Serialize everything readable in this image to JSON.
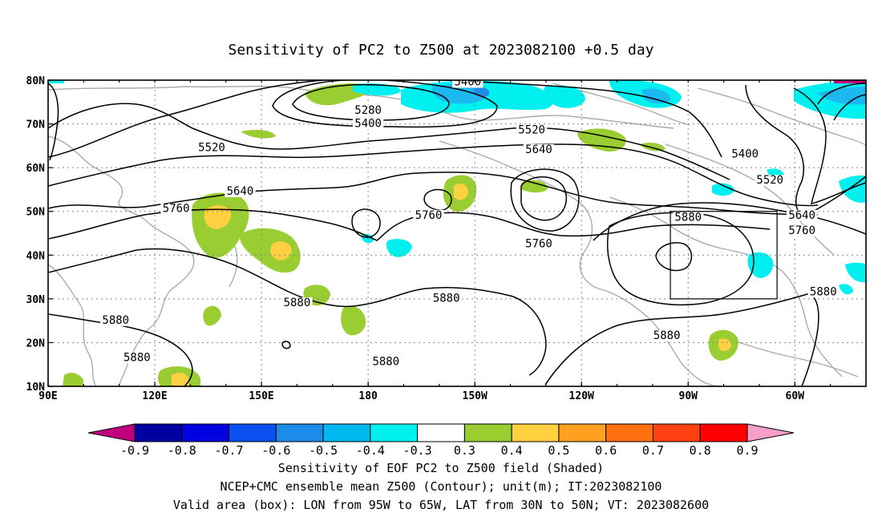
{
  "title": "Sensitivity of PC2 to Z500 at 2023082100 +0.5 day",
  "lon_labels": [
    {
      "lon": 90,
      "text": "90E"
    },
    {
      "lon": 120,
      "text": "120E"
    },
    {
      "lon": 150,
      "text": "150E"
    },
    {
      "lon": 180,
      "text": "180"
    },
    {
      "lon": 210,
      "text": "150W"
    },
    {
      "lon": 240,
      "text": "120W"
    },
    {
      "lon": 270,
      "text": "90W"
    },
    {
      "lon": 300,
      "text": "60W"
    }
  ],
  "lat_labels": [
    {
      "lat": 80,
      "text": "80N"
    },
    {
      "lat": 70,
      "text": "70N"
    },
    {
      "lat": 60,
      "text": "60N"
    },
    {
      "lat": 50,
      "text": "50N"
    },
    {
      "lat": 40,
      "text": "40N"
    },
    {
      "lat": 30,
      "text": "30N"
    },
    {
      "lat": 20,
      "text": "20N"
    },
    {
      "lat": 10,
      "text": "10N"
    }
  ],
  "map_extent": {
    "lon": [
      90,
      320
    ],
    "lat": [
      10,
      80
    ]
  },
  "contour_labels": [
    {
      "text": "5400",
      "lon": 208,
      "lat": 79
    },
    {
      "text": "5280",
      "lon": 180,
      "lat": 72.5
    },
    {
      "text": "5400",
      "lon": 180,
      "lat": 69.5
    },
    {
      "text": "5520",
      "lon": 136,
      "lat": 64
    },
    {
      "text": "5520",
      "lon": 226,
      "lat": 68
    },
    {
      "text": "5640",
      "lon": 228,
      "lat": 63.5
    },
    {
      "text": "5400",
      "lon": 286,
      "lat": 62.5
    },
    {
      "text": "5520",
      "lon": 293,
      "lat": 56.5
    },
    {
      "text": "5640",
      "lon": 144,
      "lat": 54
    },
    {
      "text": "5760",
      "lon": 126,
      "lat": 50
    },
    {
      "text": "5760",
      "lon": 197,
      "lat": 48.5
    },
    {
      "text": "5640",
      "lon": 302,
      "lat": 48.5
    },
    {
      "text": "5880",
      "lon": 270,
      "lat": 48
    },
    {
      "text": "5760",
      "lon": 228,
      "lat": 42
    },
    {
      "text": "5760",
      "lon": 302,
      "lat": 45
    },
    {
      "text": "5880",
      "lon": 160,
      "lat": 28.5
    },
    {
      "text": "5880",
      "lon": 202,
      "lat": 29.5
    },
    {
      "text": "5880",
      "lon": 308,
      "lat": 31
    },
    {
      "text": "5880",
      "lon": 109,
      "lat": 24.5
    },
    {
      "text": "5880",
      "lon": 264,
      "lat": 21
    },
    {
      "text": "5880",
      "lon": 185,
      "lat": 15
    },
    {
      "text": "5880",
      "lon": 115,
      "lat": 16
    }
  ],
  "valid_box": {
    "lon": [
      265,
      295
    ],
    "lat": [
      30,
      50
    ]
  },
  "colorbar": {
    "colors": [
      "#c0007f",
      "#0000a0",
      "#0000e0",
      "#0a50f0",
      "#1c8ce8",
      "#00b8f0",
      "#00f0f0",
      "#ffffff",
      "#9acd32",
      "#ffd040",
      "#ffa020",
      "#ff7010",
      "#ff4010",
      "#ff0000",
      "#f79fc8"
    ],
    "labels": [
      "-0.9",
      "-0.8",
      "-0.7",
      "-0.6",
      "-0.5",
      "-0.4",
      "-0.3",
      "0.3",
      "0.4",
      "0.5",
      "0.6",
      "0.7",
      "0.8",
      "0.9"
    ]
  },
  "shading_colors": {
    "cyan": "#00f0f0",
    "lightblue": "#1cb8f0",
    "blue": "#1c8ce8",
    "green": "#9acd32",
    "yellow": "#ffd040",
    "orange": "#ffa020",
    "magenta": "#c0007f"
  },
  "footer": [
    "Sensitivity of EOF PC2 to Z500 field (Shaded)",
    "NCEP+CMC ensemble mean Z500 (Contour); unit(m); IT:2023082100",
    "Valid area (box): LON from 95W to 65W, LAT from 30N to 50N; VT: 2023082600"
  ]
}
